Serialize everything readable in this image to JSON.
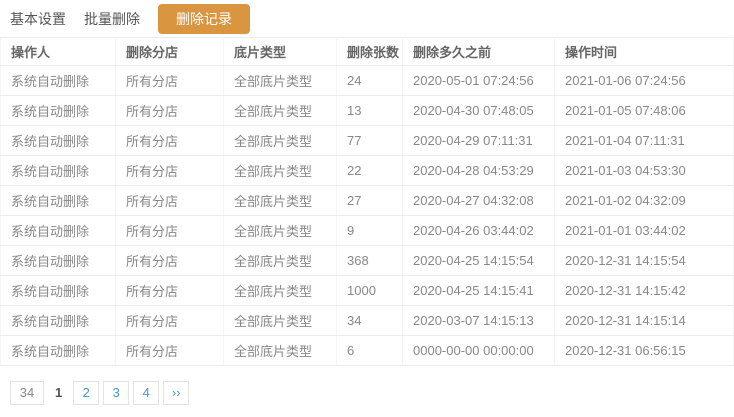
{
  "tabs": [
    {
      "label": "基本设置",
      "active": false
    },
    {
      "label": "批量删除",
      "active": false
    },
    {
      "label": "删除记录",
      "active": true
    }
  ],
  "table": {
    "columns": [
      {
        "key": "operator",
        "label": "操作人"
      },
      {
        "key": "branch",
        "label": "删除分店"
      },
      {
        "key": "film_type",
        "label": "底片类型"
      },
      {
        "key": "count",
        "label": "删除张数"
      },
      {
        "key": "delete_before",
        "label": "删除多久之前"
      },
      {
        "key": "op_time",
        "label": "操作时间"
      }
    ],
    "rows": [
      [
        "系统自动删除",
        "所有分店",
        "全部底片类型",
        "24",
        "2020-05-01 07:24:56",
        "2021-01-06 07:24:56"
      ],
      [
        "系统自动删除",
        "所有分店",
        "全部底片类型",
        "13",
        "2020-04-30 07:48:05",
        "2021-01-05 07:48:06"
      ],
      [
        "系统自动删除",
        "所有分店",
        "全部底片类型",
        "77",
        "2020-04-29 07:11:31",
        "2021-01-04 07:11:31"
      ],
      [
        "系统自动删除",
        "所有分店",
        "全部底片类型",
        "22",
        "2020-04-28 04:53:29",
        "2021-01-03 04:53:30"
      ],
      [
        "系统自动删除",
        "所有分店",
        "全部底片类型",
        "27",
        "2020-04-27 04:32:08",
        "2021-01-02 04:32:09"
      ],
      [
        "系统自动删除",
        "所有分店",
        "全部底片类型",
        "9",
        "2020-04-26 03:44:02",
        "2021-01-01 03:44:02"
      ],
      [
        "系统自动删除",
        "所有分店",
        "全部底片类型",
        "368",
        "2020-04-25 14:15:54",
        "2020-12-31 14:15:54"
      ],
      [
        "系统自动删除",
        "所有分店",
        "全部底片类型",
        "1000",
        "2020-04-25 14:15:41",
        "2020-12-31 14:15:42"
      ],
      [
        "系统自动删除",
        "所有分店",
        "全部底片类型",
        "34",
        "2020-03-07 14:15:13",
        "2020-12-31 14:15:14"
      ],
      [
        "系统自动删除",
        "所有分店",
        "全部底片类型",
        "6",
        "0000-00-00 00:00:00",
        "2020-12-31 06:56:15"
      ]
    ]
  },
  "pagination": {
    "items": [
      {
        "label": "34",
        "type": "total"
      },
      {
        "label": "1",
        "type": "current"
      },
      {
        "label": "2",
        "type": "page"
      },
      {
        "label": "3",
        "type": "page"
      },
      {
        "label": "4",
        "type": "page"
      },
      {
        "label": "››",
        "type": "next"
      }
    ]
  },
  "colors": {
    "accent_orange": "#d9953f",
    "link_blue": "#4a96d2",
    "header_text": "#666666",
    "body_text": "#888888",
    "row_border": "#ededed"
  }
}
